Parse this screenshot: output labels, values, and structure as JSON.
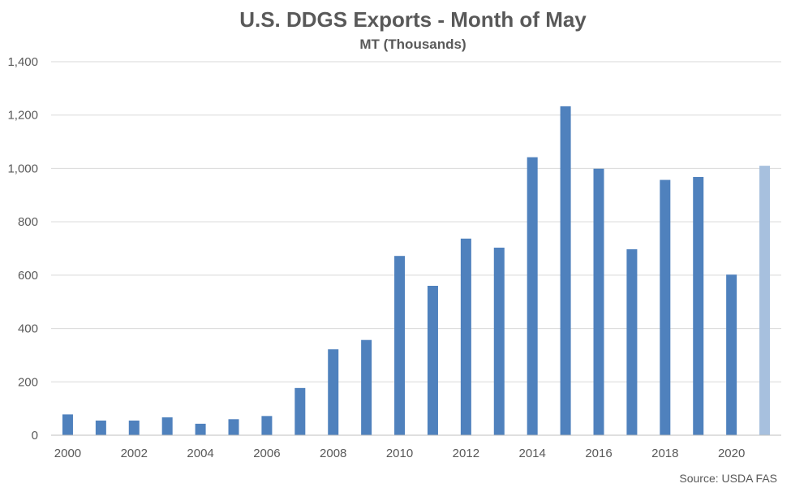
{
  "chart_data": {
    "type": "bar",
    "title": "U.S. DDGS Exports - Month of May",
    "subtitle": "MT (Thousands)",
    "source": "Source: USDA FAS",
    "xlabel": "",
    "ylabel": "",
    "ylim": [
      0,
      1400
    ],
    "yticks": [
      0,
      200,
      400,
      600,
      800,
      1000,
      1200,
      1400
    ],
    "ytick_labels": [
      "0",
      "200",
      "400",
      "600",
      "800",
      "1,000",
      "1,200",
      "1,400"
    ],
    "grid": true,
    "legend": "none",
    "categories": [
      "2000",
      "2001",
      "2002",
      "2003",
      "2004",
      "2005",
      "2006",
      "2007",
      "2008",
      "2009",
      "2010",
      "2011",
      "2012",
      "2013",
      "2014",
      "2015",
      "2016",
      "2017",
      "2018",
      "2019",
      "2020",
      "2021"
    ],
    "xtick_labels": [
      "2000",
      "2002",
      "2004",
      "2006",
      "2008",
      "2010",
      "2012",
      "2014",
      "2016",
      "2018",
      "2020"
    ],
    "values": [
      78,
      55,
      55,
      67,
      43,
      60,
      72,
      177,
      322,
      357,
      672,
      560,
      737,
      703,
      1042,
      1233,
      999,
      697,
      957,
      968,
      602,
      1010
    ],
    "colors": {
      "bar": "#4f81bd",
      "highlight": "#a7c0de"
    },
    "highlight_categories": [
      "2021"
    ]
  }
}
